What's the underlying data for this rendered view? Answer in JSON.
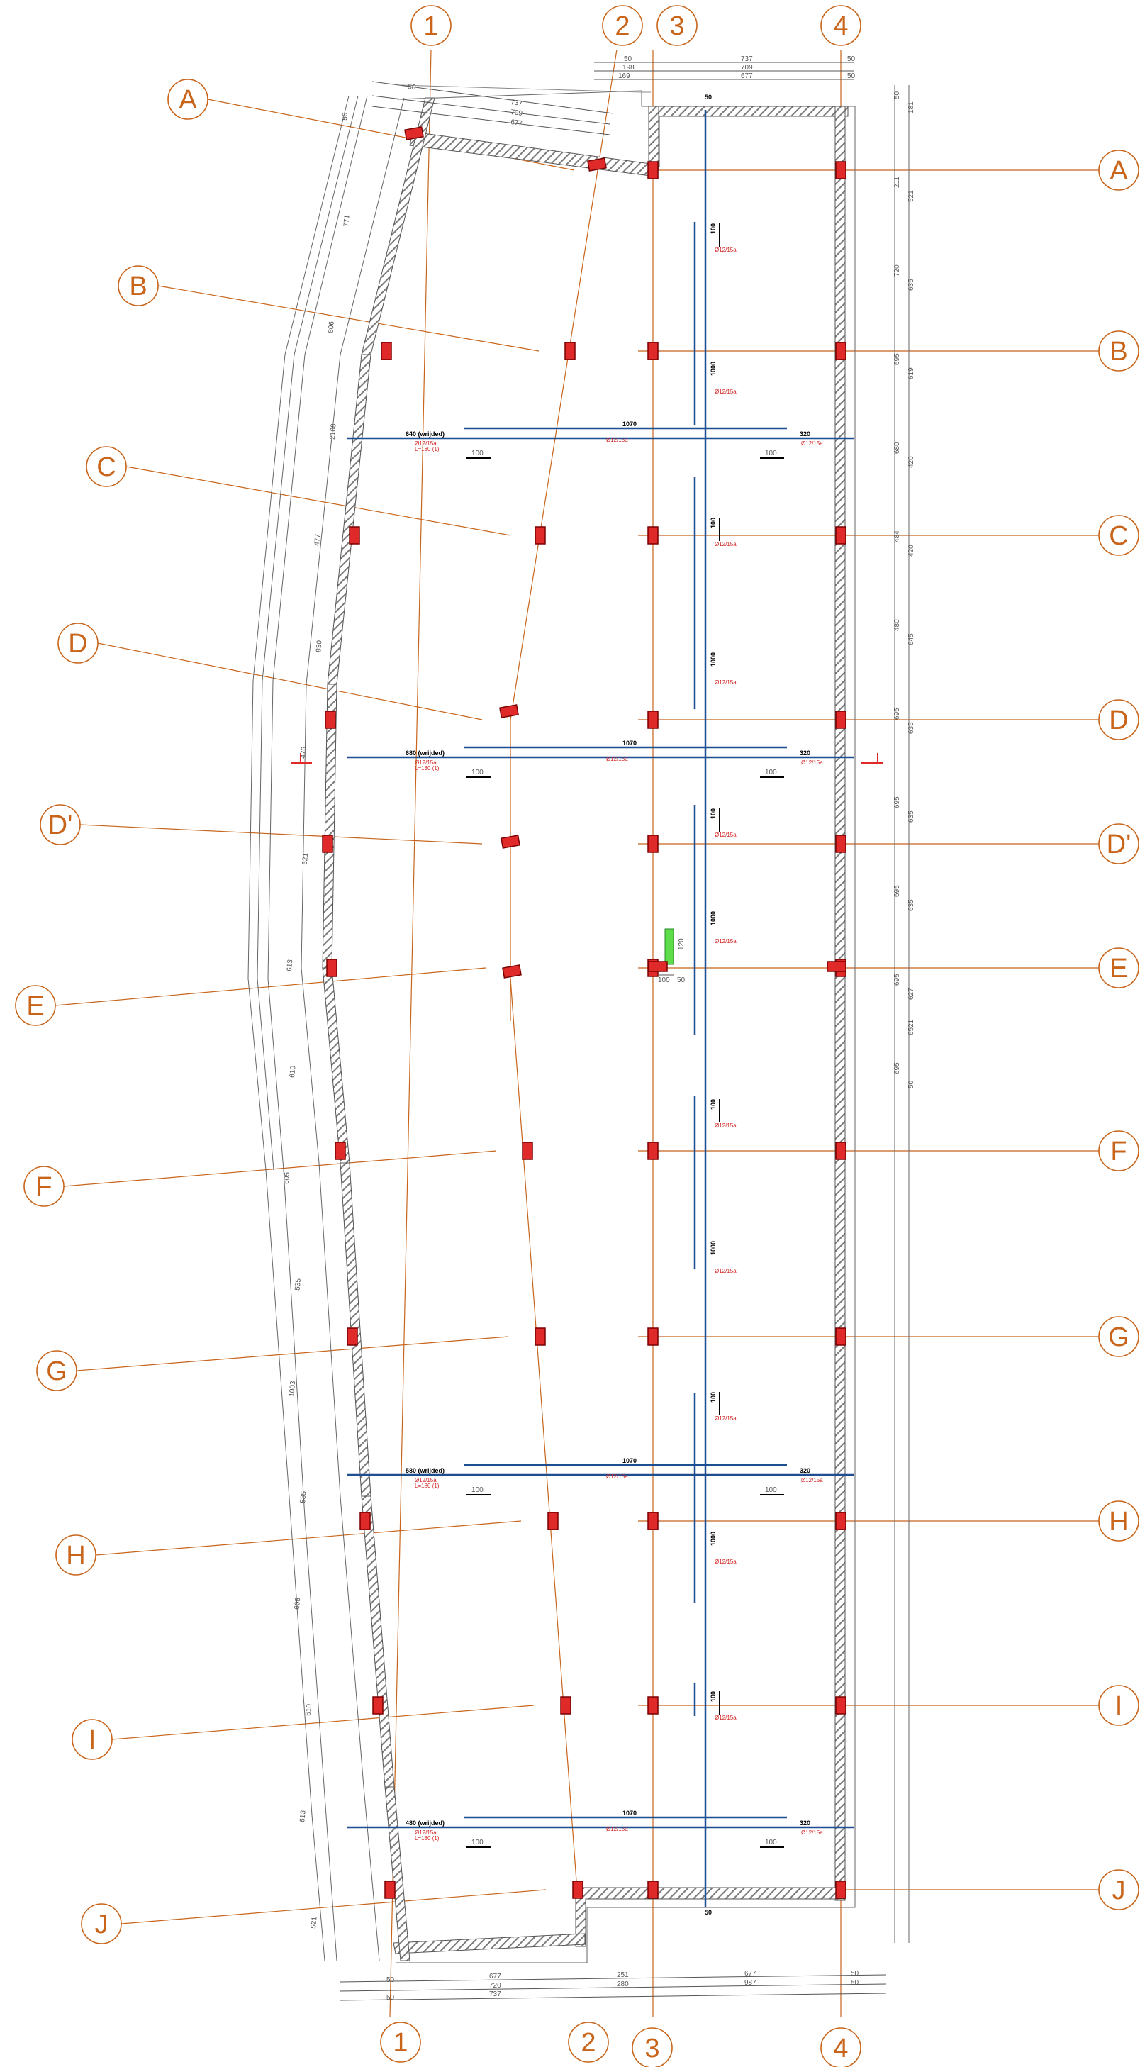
{
  "plan": {
    "colors": {
      "axis": "#c8651b",
      "wall_hatch": "#7a7a7a",
      "column": "#e02a2a",
      "beam": "#1d4f91",
      "dimension": "#555555",
      "highlight": "#5fdc4a"
    },
    "column_axes": [
      "1",
      "2",
      "3",
      "4"
    ],
    "row_axes": [
      "A",
      "B",
      "C",
      "D",
      "D'",
      "E",
      "F",
      "G",
      "H",
      "I",
      "J"
    ],
    "top_dims": {
      "row1": [
        "50",
        "737",
        "50"
      ],
      "row2": [
        "198",
        "709"
      ],
      "row3": [
        "169",
        "677",
        "50"
      ],
      "slant1": [
        "50",
        "737"
      ],
      "slant2": [
        "709"
      ],
      "slant3": [
        "677"
      ]
    },
    "bottom_dims": {
      "row1": [
        "50",
        "677",
        "251",
        "677",
        "50"
      ],
      "row2": [
        "720",
        "280",
        "987",
        "50"
      ],
      "row3": [
        "50",
        "737"
      ]
    },
    "right_dims": {
      "segments": [
        "50",
        "181",
        "211",
        "521",
        "720",
        "635",
        "695",
        "619",
        "680",
        "420",
        "484",
        "420",
        "480",
        "645",
        "695",
        "635",
        "695",
        "635",
        "695",
        "635",
        "695",
        "627",
        "695",
        "50"
      ],
      "total": "6521"
    },
    "left_dims": {
      "segments": [
        "50",
        "771",
        "806",
        "2108",
        "477",
        "830",
        "476",
        "521",
        "613",
        "610",
        "605",
        "535",
        "1003",
        "535",
        "605",
        "610",
        "613",
        "521"
      ]
    },
    "beams": {
      "horizontal": [
        "640 (wrijded)",
        "1070",
        "320",
        "680 (wrijded)",
        "1070",
        "320",
        "580 (wrijded)",
        "1070",
        "320",
        "480 (wrijded)",
        "1070",
        "320"
      ],
      "vertical": [
        "100",
        "1000",
        "100",
        "1000",
        "100",
        "1000",
        "100",
        "1000",
        "100",
        "1000",
        "100"
      ],
      "sub_labels": [
        "100",
        "100"
      ],
      "top_label": "50",
      "bottom_label": "50"
    },
    "notes": {
      "tag": "Ø12/15a",
      "tag2": "L=180 (1)"
    },
    "center_detail": [
      "100",
      "50",
      "120"
    ]
  }
}
